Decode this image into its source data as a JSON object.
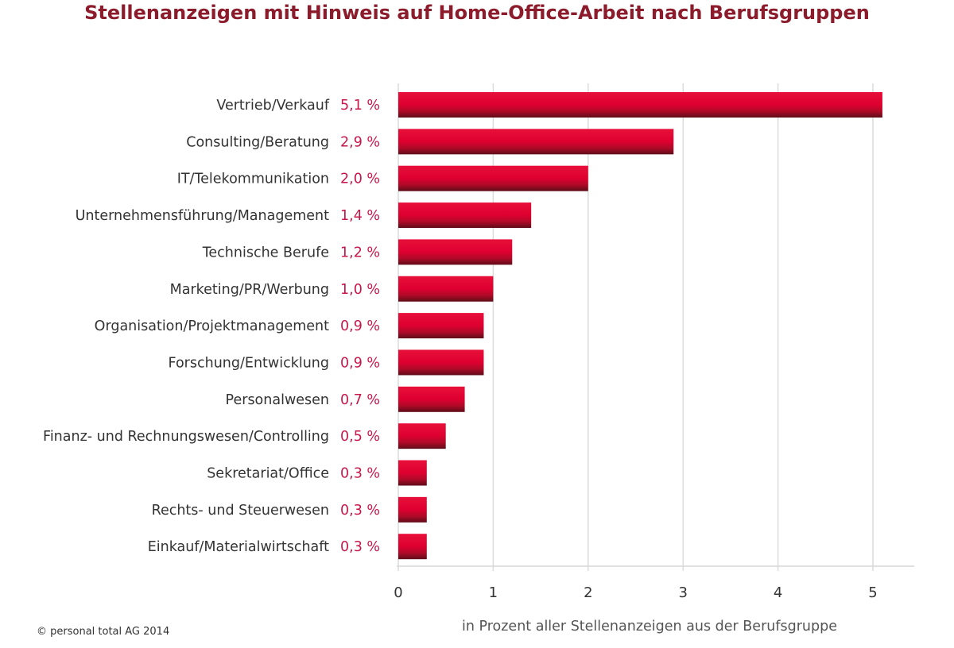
{
  "chart_data": {
    "type": "bar",
    "orientation": "horizontal",
    "title": "Stellenanzeigen mit Hinweis auf Home-Office-Arbeit nach Berufsgruppen",
    "xlabel": "in Prozent aller Stellenanzeigen aus der Berufsgruppe",
    "ylabel": "",
    "xlim": [
      0,
      5.4
    ],
    "xticks": [
      "0",
      "1",
      "2",
      "3",
      "4",
      "5"
    ],
    "grid": true,
    "categories": [
      "Vertrieb/Verkauf",
      "Consulting/Beratung",
      "IT/Telekommunikation",
      "Unternehmensführung/Management",
      "Technische Berufe",
      "Marketing/PR/Werbung",
      "Organisation/Projektmanagement",
      "Forschung/Entwicklung",
      "Personalwesen",
      "Finanz- und Rechnungswesen/Controlling",
      "Sekretariat/Office",
      "Rechts- und Steuerwesen",
      "Einkauf/Materialwirtschaft"
    ],
    "values": [
      5.1,
      2.9,
      2.0,
      1.4,
      1.2,
      1.0,
      0.9,
      0.9,
      0.7,
      0.5,
      0.3,
      0.3,
      0.3
    ],
    "data_labels": [
      "5,1 %",
      "2,9 %",
      "2,0 %",
      "1,4 %",
      "1,2 %",
      "1,0 %",
      "0,9 %",
      "0,9 %",
      "0,7 %",
      "0,5 %",
      "0,3 %",
      "0,3 %",
      "0,3 %"
    ],
    "colors": {
      "bar": "#e0002e",
      "bar_shadow": "#6e0f1e",
      "title": "#8c1c2c",
      "data_label": "#c8174a"
    }
  },
  "copyright": "© personal total AG 2014"
}
